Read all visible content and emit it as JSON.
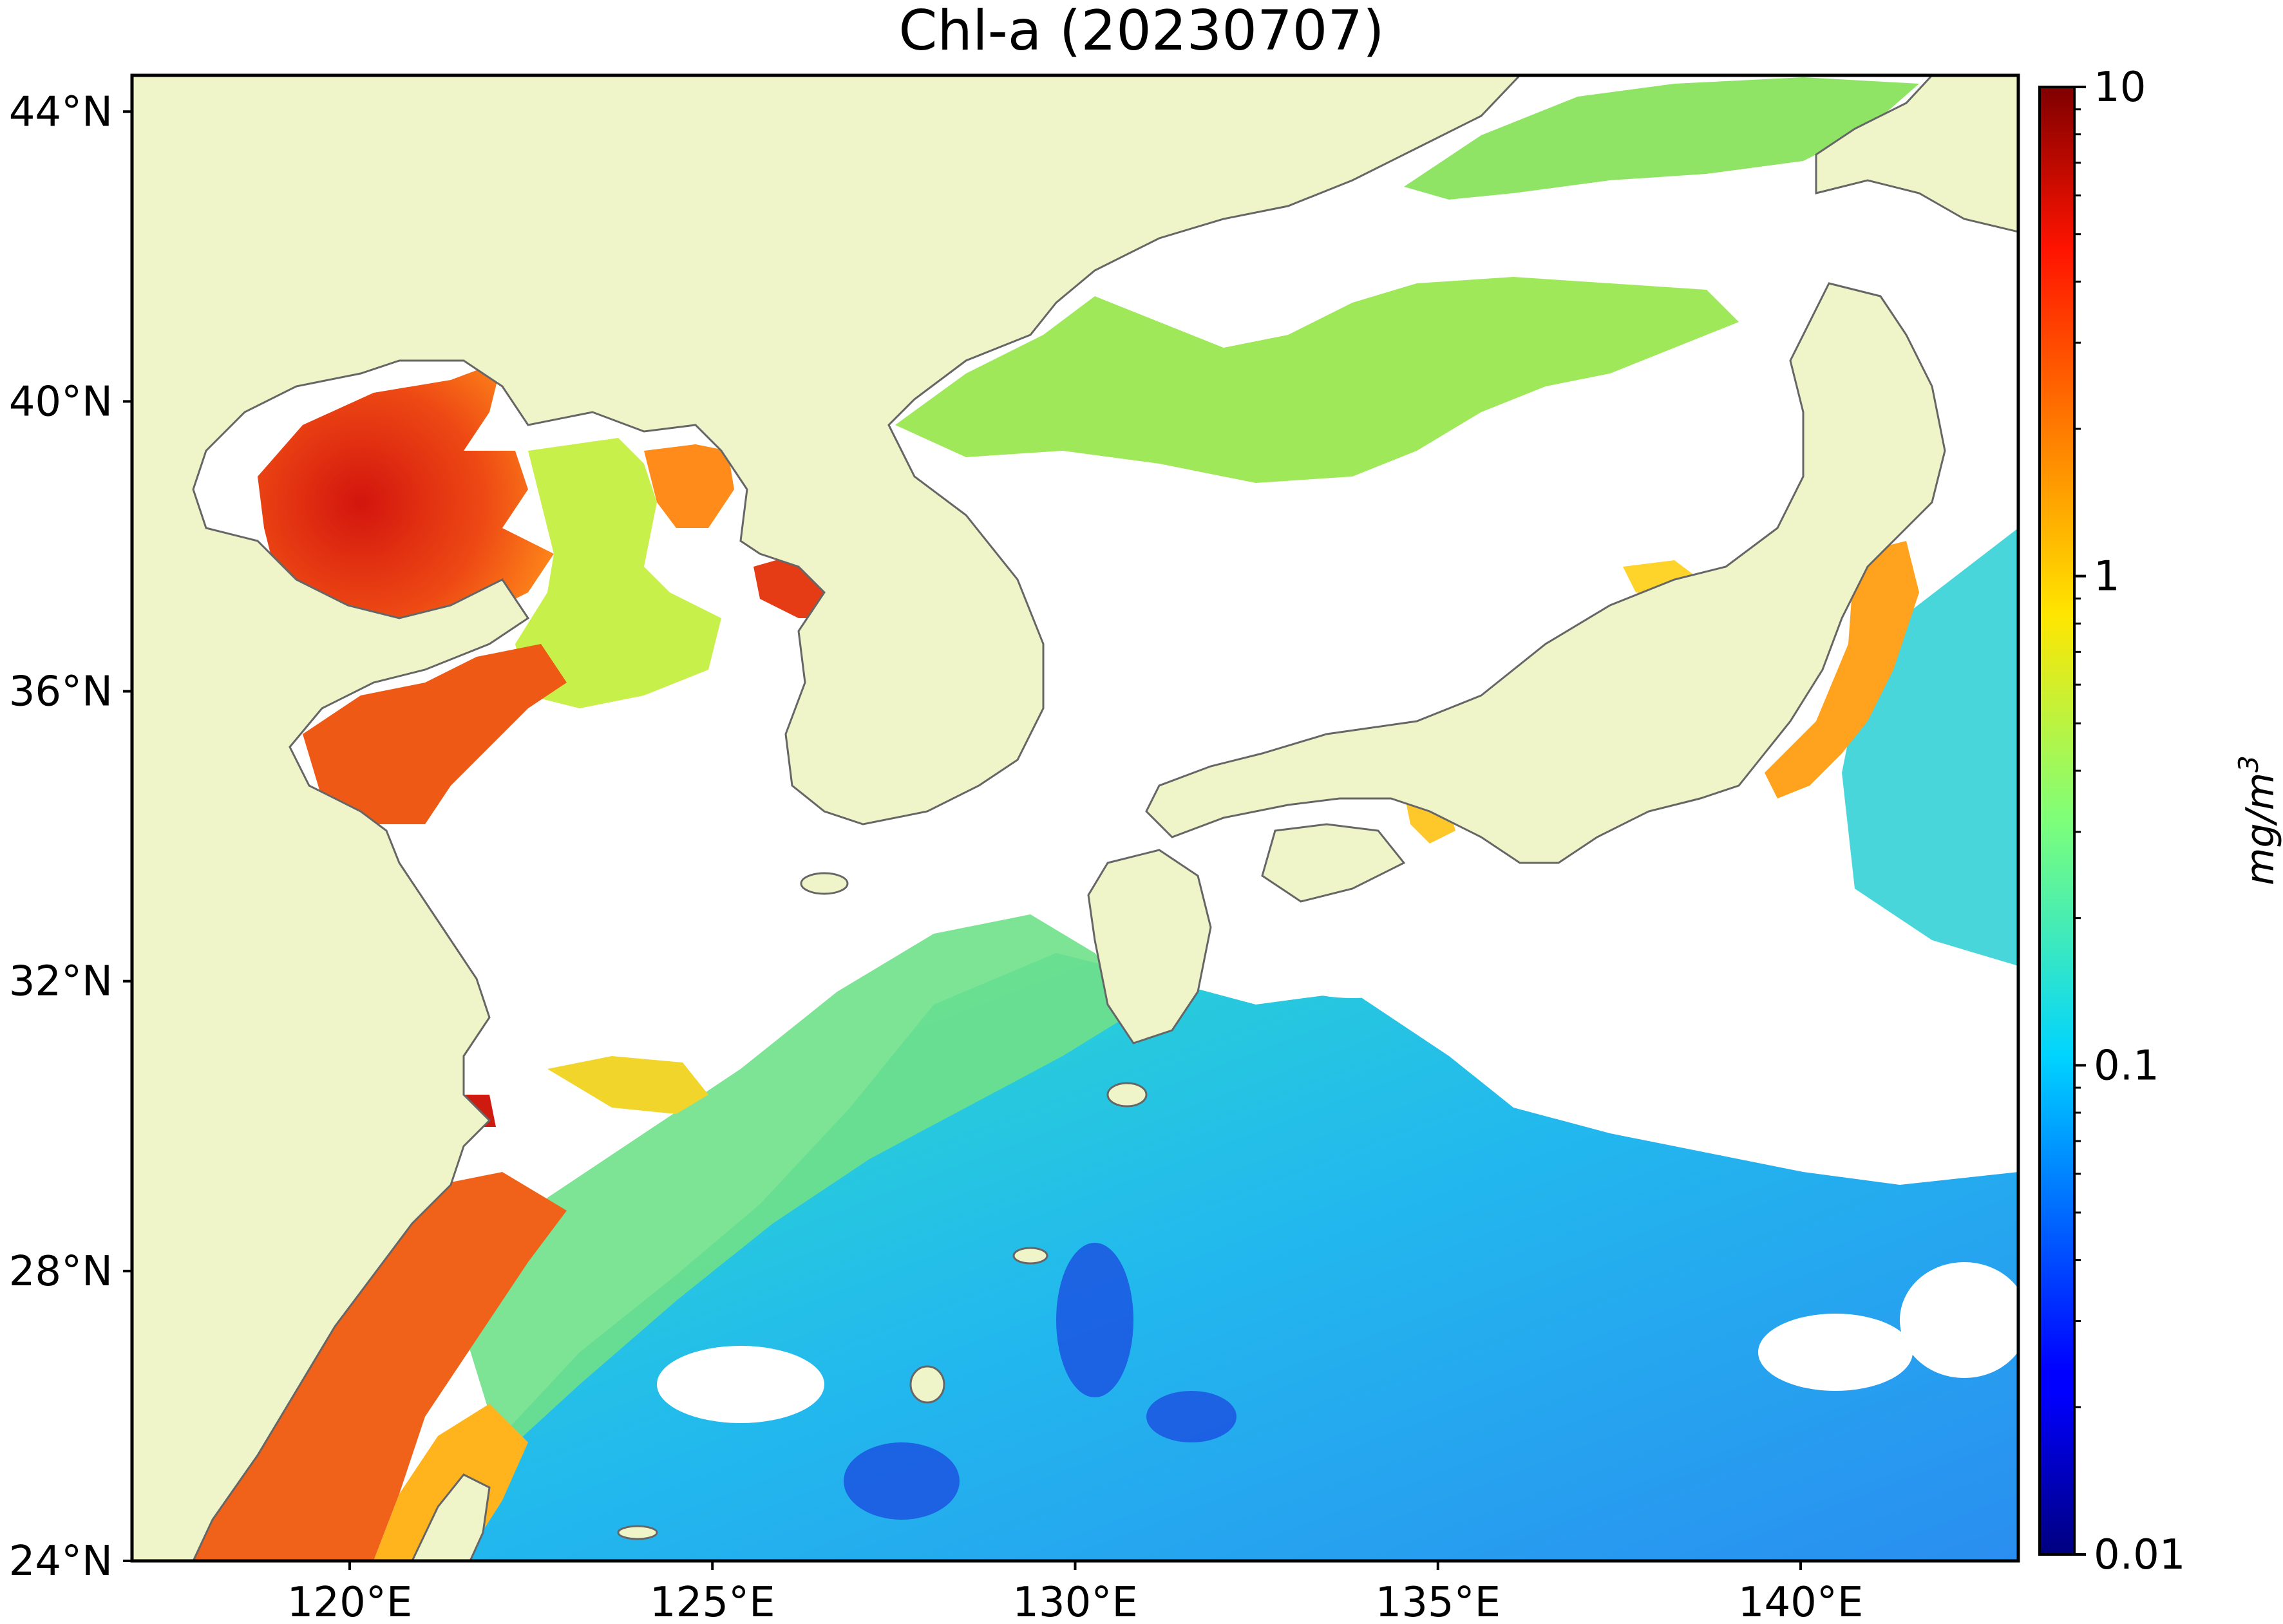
{
  "title": "Chl-a (20230707)",
  "map": {
    "lon_range": [
      117,
      143
    ],
    "lat_range": [
      24,
      44.5
    ],
    "lat_ticks": [
      {
        "value": 44,
        "label": "44°N"
      },
      {
        "value": 40,
        "label": "40°N"
      },
      {
        "value": 36,
        "label": "36°N"
      },
      {
        "value": 32,
        "label": "32°N"
      },
      {
        "value": 28,
        "label": "28°N"
      },
      {
        "value": 24,
        "label": "24°N"
      }
    ],
    "lon_ticks": [
      {
        "value": 120,
        "label": "120°E"
      },
      {
        "value": 125,
        "label": "125°E"
      },
      {
        "value": 130,
        "label": "130°E"
      },
      {
        "value": 135,
        "label": "135°E"
      },
      {
        "value": 140,
        "label": "140°E"
      }
    ],
    "colors": {
      "land": "#eff5c8",
      "coastline": "#666666",
      "cloud_nodata": "#ffffff"
    }
  },
  "colorbar": {
    "scale": "log",
    "range": [
      0.01,
      10
    ],
    "colormap": "jet",
    "ticks": [
      {
        "value": 10,
        "label": "10"
      },
      {
        "value": 1,
        "label": "1"
      },
      {
        "value": 0.1,
        "label": "0.1"
      },
      {
        "value": 0.01,
        "label": "0.01"
      }
    ],
    "unit_base": "mg/m",
    "unit_sup": "3"
  }
}
